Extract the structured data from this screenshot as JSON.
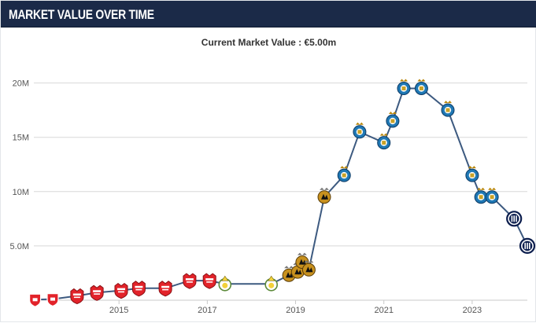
{
  "header": {
    "title": "MARKET VALUE OVER TIME"
  },
  "chart_data": {
    "type": "line",
    "title": "Current Market Value : €5.00m",
    "xlabel": "",
    "ylabel": "",
    "y_tick_labels": [
      "5.0M",
      "10M",
      "15M",
      "20M"
    ],
    "y_tick_values": [
      5,
      10,
      15,
      20
    ],
    "x_tick_labels": [
      "2015",
      "2017",
      "2019",
      "2021",
      "2023"
    ],
    "x_tick_values": [
      2015,
      2017,
      2019,
      2021,
      2023
    ],
    "xlim": [
      2013.0,
      2024.25
    ],
    "ylim": [
      0,
      21.2
    ],
    "grid": true,
    "colors": {
      "line": "#3d5a80",
      "grid": "#d8d8d8",
      "club_red": "#e2232a",
      "club_yellow": "#f2d13b",
      "club_gold": "#c8911e",
      "club_blue": "#1f78b4",
      "club_navy": "#0b1d4d"
    },
    "series": [
      {
        "values_in": "EUR millions",
        "points": [
          {
            "x": 2013.1,
            "y": 0.05,
            "club": "red-shield"
          },
          {
            "x": 2013.5,
            "y": 0.1,
            "club": "red-shield"
          },
          {
            "x": 2014.05,
            "y": 0.4,
            "club": "red-crest"
          },
          {
            "x": 2014.5,
            "y": 0.7,
            "club": "red-crest"
          },
          {
            "x": 2015.05,
            "y": 0.9,
            "club": "red-crest"
          },
          {
            "x": 2015.45,
            "y": 1.1,
            "club": "red-crest"
          },
          {
            "x": 2016.05,
            "y": 1.1,
            "club": "red-crest"
          },
          {
            "x": 2016.6,
            "y": 1.8,
            "club": "red-crest"
          },
          {
            "x": 2017.05,
            "y": 1.8,
            "club": "red-crest"
          },
          {
            "x": 2017.4,
            "y": 1.5,
            "club": "yellow-green"
          },
          {
            "x": 2018.45,
            "y": 1.5,
            "club": "yellow-green"
          },
          {
            "x": 2018.85,
            "y": 2.3,
            "club": "gold-black"
          },
          {
            "x": 2019.05,
            "y": 2.6,
            "club": "gold-black"
          },
          {
            "x": 2019.15,
            "y": 3.5,
            "club": "gold-black"
          },
          {
            "x": 2019.3,
            "y": 2.8,
            "club": "gold-black"
          },
          {
            "x": 2019.65,
            "y": 9.5,
            "club": "gold-black"
          },
          {
            "x": 2020.1,
            "y": 11.5,
            "club": "blue-crest"
          },
          {
            "x": 2020.45,
            "y": 15.5,
            "club": "blue-crest"
          },
          {
            "x": 2021.0,
            "y": 14.5,
            "club": "blue-crest"
          },
          {
            "x": 2021.2,
            "y": 16.5,
            "club": "blue-crest"
          },
          {
            "x": 2021.45,
            "y": 19.5,
            "club": "blue-crest"
          },
          {
            "x": 2021.85,
            "y": 19.5,
            "club": "blue-crest"
          },
          {
            "x": 2022.45,
            "y": 17.5,
            "club": "blue-crest"
          },
          {
            "x": 2023.0,
            "y": 11.5,
            "club": "blue-crest"
          },
          {
            "x": 2023.2,
            "y": 9.5,
            "club": "blue-crest"
          },
          {
            "x": 2023.45,
            "y": 9.5,
            "club": "blue-crest"
          },
          {
            "x": 2023.95,
            "y": 7.5,
            "club": "navy-stripes"
          },
          {
            "x": 2024.25,
            "y": 5.0,
            "club": "navy-stripes"
          }
        ]
      }
    ]
  }
}
